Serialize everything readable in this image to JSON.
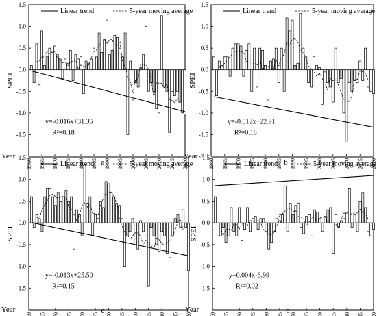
{
  "chart_data": [
    {
      "type": "bar",
      "panel_label": "a",
      "ylabel": "SPEI",
      "xlabel": "Year",
      "legend": {
        "placement": "top",
        "linear_label": "Linear trend",
        "ma_label": "5-year moving average"
      },
      "ylim": [
        -2.0,
        1.5
      ],
      "yticks": [
        -2.0,
        -1.5,
        -1.0,
        -0.5,
        0.0,
        0.5,
        1.0,
        1.5
      ],
      "ytick_labels": [
        "",
        "-1.5",
        "-1.0",
        "-0.5",
        "0.0",
        "0.5",
        "1.0",
        "1.5"
      ],
      "xticks": [
        1960,
        1965,
        1970,
        1975,
        1980,
        1985,
        1990,
        1995,
        2000,
        2005,
        2010,
        2015,
        2020
      ],
      "years": [
        1961,
        2020
      ],
      "values": [
        0.1,
        -0.3,
        0.6,
        -0.35,
        0.9,
        0.1,
        0.3,
        0.5,
        0.4,
        0.55,
        0.35,
        0.25,
        -0.2,
        0.25,
        0.15,
        0.45,
        -0.25,
        0.35,
        0.25,
        0.3,
        -0.55,
        0.2,
        0.15,
        0.25,
        0.5,
        0.3,
        0.85,
        0.4,
        0.7,
        1.15,
        0.35,
        0.45,
        0.8,
        0.75,
        0.5,
        0.3,
        0.85,
        -1.5,
        0.2,
        -0.7,
        -0.3,
        -0.4,
        0.05,
        0.35,
        1.0,
        -0.5,
        -0.3,
        -0.5,
        -0.9,
        -1.0,
        1.25,
        -0.4,
        -0.5,
        -1.45,
        -0.5,
        -0.6,
        -0.5,
        -0.75,
        -1.0,
        -1.05
      ],
      "trend": {
        "slope": -0.016,
        "intercept": 31.35
      },
      "equation": "y=-0.016x+31.35",
      "r2": "R²=0.18"
    },
    {
      "type": "bar",
      "panel_label": "b",
      "ylabel": "SPEI",
      "xlabel": "Year",
      "legend": {
        "placement": "top",
        "linear_label": "Linear trend",
        "ma_label": "5-year moving average"
      },
      "ylim": [
        -2.0,
        1.5
      ],
      "yticks": [
        -2.0,
        -1.5,
        -1.0,
        -0.5,
        0.0,
        0.5,
        1.0,
        1.5
      ],
      "ytick_labels": [
        "-2.0",
        "-1.5",
        "-1.0",
        "-0.5",
        "0.0",
        "0.5",
        "1.0",
        "1.5"
      ],
      "xticks": [
        1960,
        1965,
        1970,
        1975,
        1980,
        1985,
        1990,
        1995,
        2000,
        2005,
        2010,
        2015,
        2020
      ],
      "years": [
        1961,
        2020
      ],
      "values": [
        0.3,
        -0.6,
        0.2,
        0.1,
        0.3,
        0.3,
        -0.15,
        0.5,
        0.6,
        0.6,
        0.55,
        -0.15,
        0.45,
        0.6,
        -0.5,
        0.5,
        -0.4,
        0.5,
        0.45,
        0.1,
        -0.7,
        0.2,
        0.25,
        0.5,
        -0.3,
        0.5,
        -0.5,
        1.2,
        0.9,
        1.15,
        0.1,
        0.15,
        1.3,
        0.5,
        0.3,
        -0.3,
        -0.4,
        0.3,
        0.1,
        0.05,
        -0.8,
        -0.05,
        -0.3,
        -0.4,
        -0.75,
        0.5,
        -0.3,
        -0.2,
        -1.0,
        -1.65,
        -0.3,
        -0.5,
        -0.25,
        -0.3,
        0.2,
        -0.25,
        0.5,
        -0.4,
        -0.5,
        -0.55
      ],
      "trend": {
        "slope": -0.012,
        "intercept": 22.91
      },
      "equation": "y=-0.012x+22.91",
      "r2": "R²=0.18"
    },
    {
      "type": "bar",
      "panel_label": "c",
      "ylabel": "SPEI",
      "xlabel": "Year",
      "legend": {
        "placement": "top",
        "linear_label": "Linear trend",
        "ma_label": "5-year moving average"
      },
      "ylim": [
        -2.0,
        1.5
      ],
      "yticks": [
        -2.0,
        -1.5,
        -1.0,
        -0.5,
        0.0,
        0.5,
        1.0,
        1.5
      ],
      "ytick_labels": [
        "",
        "-1.5",
        "-1.0",
        "-0.5",
        "0.0",
        "0.5",
        "1.0",
        "1.5"
      ],
      "xticks": [
        1960,
        1965,
        1970,
        1975,
        1980,
        1985,
        1990,
        1995,
        2000,
        2005,
        2010,
        2015,
        2020
      ],
      "years": [
        1961,
        2020
      ],
      "values": [
        0.6,
        -0.1,
        0.2,
        0.1,
        -0.2,
        0.6,
        0.8,
        0.8,
        0.6,
        0.4,
        0.7,
        0.5,
        0.6,
        0.75,
        0.5,
        0.6,
        -0.6,
        0.3,
        0.2,
        -0.3,
        1.35,
        0.45,
        0.6,
        -0.3,
        0.2,
        0.1,
        0.5,
        0.35,
        0.95,
        0.9,
        0.7,
        0.6,
        0.45,
        0.4,
        0.1,
        -1.0,
        -0.3,
        -0.2,
        0.1,
        -0.5,
        -0.6,
        0.05,
        -0.2,
        -0.3,
        -1.45,
        -0.1,
        -0.3,
        -0.5,
        -0.65,
        -0.2,
        -0.3,
        -0.7,
        -0.8,
        -0.3,
        0.1,
        0.2,
        -0.1,
        0.3,
        -0.1,
        -1.1
      ],
      "trend": {
        "slope": -0.013,
        "intercept": 25.5
      },
      "equation": "y=-0.013x+25.50",
      "r2": "R²=0.15"
    },
    {
      "type": "bar",
      "panel_label": "d",
      "ylabel": "SPEI",
      "xlabel": "Year",
      "legend": {
        "placement": "top",
        "linear_label": "Linear trend",
        "ma_label": "5-year moving average"
      },
      "ylim": [
        -2.0,
        1.5
      ],
      "yticks": [
        -2.0,
        -1.5,
        -1.0,
        -0.5,
        0.0,
        0.5,
        1.0,
        1.5
      ],
      "ytick_labels": [
        "",
        "-1.5",
        "-1.0",
        "-0.5",
        "0.0",
        "0.5",
        "1.0",
        "1.5"
      ],
      "xticks": [
        1960,
        1965,
        1970,
        1975,
        1980,
        1985,
        1990,
        1995,
        2000,
        2005,
        2010,
        2015,
        2020
      ],
      "years": [
        1961,
        2020
      ],
      "values": [
        0.6,
        -0.3,
        -0.3,
        -0.1,
        -0.45,
        -0.3,
        0.35,
        -0.2,
        -0.3,
        0.35,
        -0.4,
        -0.15,
        0.35,
        -0.2,
        0.1,
        0.15,
        -0.15,
        0.1,
        0.1,
        -0.2,
        -0.6,
        -0.45,
        -0.2,
        0.1,
        0.05,
        0.2,
        0.85,
        -0.2,
        0.45,
        0.2,
        0.4,
        0.45,
        -0.1,
        -0.25,
        0.15,
        0.2,
        -0.3,
        0.3,
        0.25,
        0.1,
        -0.2,
        0.15,
        0.3,
        0.35,
        -0.7,
        0.2,
        -0.1,
        0.05,
        0.1,
        0.25,
        0.8,
        -0.1,
        0.2,
        -0.2,
        0.5,
        0.7,
        0.35,
        -0.2,
        -0.3,
        -0.15
      ],
      "trend": {
        "slope": 0.004,
        "intercept": -6.99
      },
      "equation": "y=0.004x-6.99",
      "r2": "R²=0.02"
    }
  ]
}
